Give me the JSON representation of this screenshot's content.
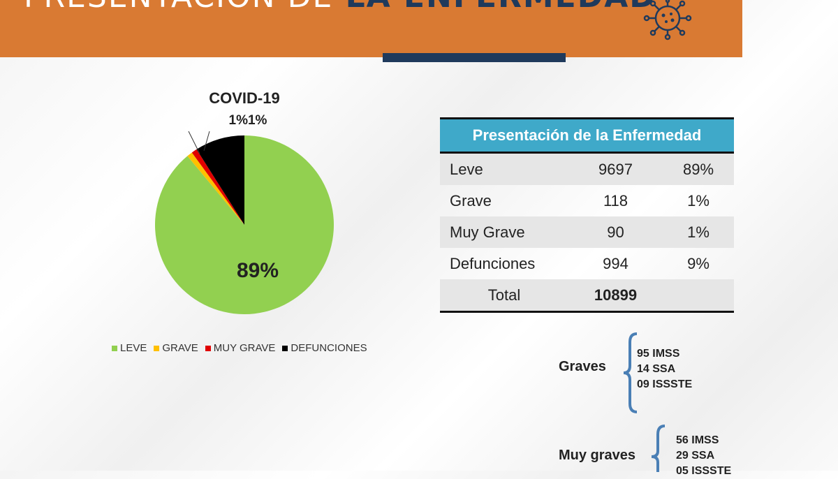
{
  "header": {
    "title_part1": "PRESENTACIÓN DE",
    "title_part2": "LA ENFERMEDAD",
    "icon": "virus-icon",
    "colors": {
      "band": "#d97a33",
      "accent": "#1f3a5c"
    }
  },
  "chart_data": {
    "type": "pie",
    "title": "COVID-19",
    "slices": [
      {
        "name": "LEVE",
        "value": 89,
        "color": "#92d050"
      },
      {
        "name": "GRAVE",
        "value": 1,
        "color": "#ffc000"
      },
      {
        "name": "MUY GRAVE",
        "value": 1,
        "color": "#e00000"
      },
      {
        "name": "DEFUNCIONES",
        "value": 9,
        "color": "#000000"
      }
    ],
    "data_labels": {
      "leve": "89%",
      "top": "1%1%"
    },
    "legend_position": "bottom"
  },
  "table": {
    "title": "Presentación de la Enfermedad",
    "rows": [
      {
        "label": "Leve",
        "count": "9697",
        "pct": "89%"
      },
      {
        "label": "Grave",
        "count": "118",
        "pct": "1%"
      },
      {
        "label": "Muy Grave",
        "count": "90",
        "pct": "1%"
      },
      {
        "label": "Defunciones",
        "count": "994",
        "pct": "9%"
      }
    ],
    "total_label": "Total",
    "total_value": "10899",
    "header_color": "#3fa9c9"
  },
  "graves": {
    "label": "Graves",
    "items": [
      "95 IMSS",
      "14 SSA",
      "09 ISSSTE"
    ]
  },
  "muy_graves": {
    "label": "Muy graves",
    "items": [
      "56 IMSS",
      "29 SSA",
      "05 ISSSTE"
    ]
  }
}
